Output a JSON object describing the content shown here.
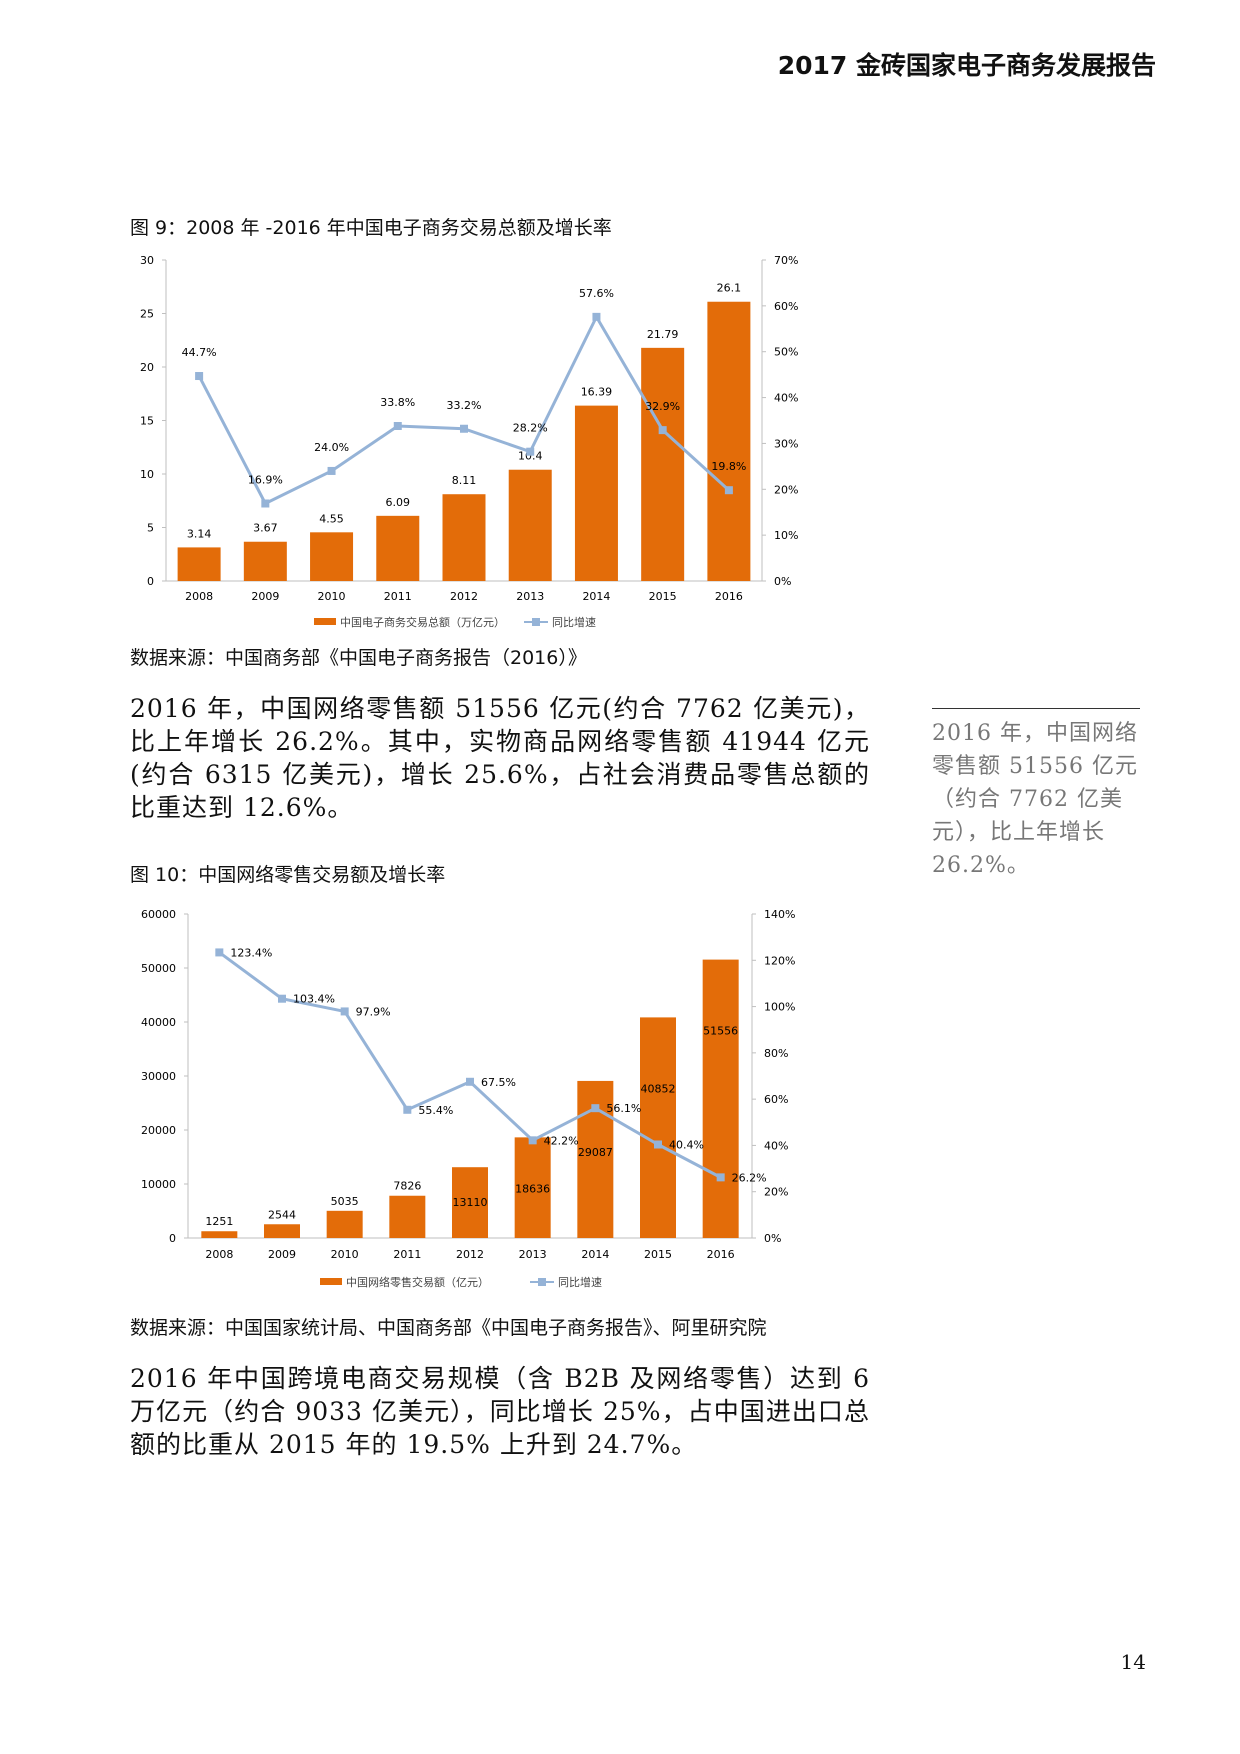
{
  "header": {
    "title": "2017 金砖国家电子商务发展报告"
  },
  "figure9": {
    "caption": "图 9：2008 年 -2016 年中国电子商务交易总额及增长率"
  },
  "figure9_source": "数据来源：中国商务部《中国电子商务报告（2016）》",
  "paragraph1": "2016 年，中国网络零售额 51556 亿元(约合 7762 亿美元)，比上年增长 26.2%。其中，实物商品网络零售额 41944 亿元(约合 6315 亿美元)，增长 25.6%，占社会消费品零售总额的比重达到 12.6%。",
  "sidebar": {
    "quote": "2016 年，中国网络零售额 51556 亿元（约合 7762 亿美元），比上年增长 26.2%。"
  },
  "figure10": {
    "caption": "图 10：中国网络零售交易额及增长率"
  },
  "figure10_source": "数据来源：中国国家统计局、中国商务部《中国电子商务报告》、阿里研究院",
  "paragraph2": "2016 年中国跨境电商交易规模（含 B2B 及网络零售）达到 6 万亿元（约合 9033 亿美元），同比增长 25%，占中国进出口总额的比重从 2015 年的 19.5% 上升到 24.7%。",
  "page_number": "14",
  "colors": {
    "bar": "#E36C09",
    "line": "#95B3D7",
    "axis": "#BFBFBF"
  },
  "chart_data": [
    {
      "type": "bar+line",
      "categories": [
        "2008",
        "2009",
        "2010",
        "2011",
        "2012",
        "2013",
        "2014",
        "2015",
        "2016"
      ],
      "series": [
        {
          "name": "中国电子商务交易总额（万亿元）",
          "kind": "bar",
          "axis": "left",
          "values": [
            3.14,
            3.67,
            4.55,
            6.09,
            8.11,
            10.4,
            16.39,
            21.79,
            26.1
          ],
          "labels": [
            "3.14",
            "3.67",
            "4.55",
            "6.09",
            "8.11",
            "10.4",
            "16.39",
            "21.79",
            "26.1"
          ]
        },
        {
          "name": "同比增速",
          "kind": "line",
          "axis": "right",
          "values": [
            44.7,
            16.9,
            24.0,
            33.8,
            33.2,
            28.2,
            57.6,
            32.9,
            19.8
          ],
          "labels": [
            "44.7%",
            "16.9%",
            "24.0%",
            "33.8%",
            "33.2%",
            "28.2%",
            "57.6%",
            "32.9%",
            "19.8%"
          ]
        }
      ],
      "yleft": {
        "min": 0,
        "max": 30,
        "ticks": [
          "0",
          "5",
          "10",
          "15",
          "20",
          "25",
          "30"
        ]
      },
      "yright": {
        "min": 0,
        "max": 70,
        "ticks": [
          "0%",
          "10%",
          "20%",
          "30%",
          "40%",
          "50%",
          "60%",
          "70%"
        ]
      },
      "legend": "bottom"
    },
    {
      "type": "bar+line",
      "categories": [
        "2008",
        "2009",
        "2010",
        "2011",
        "2012",
        "2013",
        "2014",
        "2015",
        "2016"
      ],
      "series": [
        {
          "name": "中国网络零售交易额（亿元）",
          "kind": "bar",
          "axis": "left",
          "values": [
            1251,
            2544,
            5035,
            7826,
            13110,
            18636,
            29087,
            40852,
            51556
          ],
          "labels": [
            "1251",
            "2544",
            "5035",
            "7826",
            "13110",
            "18636",
            "29087",
            "40852",
            "51556"
          ]
        },
        {
          "name": "同比增速",
          "kind": "line",
          "axis": "right",
          "values": [
            123.4,
            103.4,
            97.9,
            55.4,
            67.5,
            42.2,
            56.1,
            40.4,
            26.2
          ],
          "labels": [
            "123.4%",
            "103.4%",
            "97.9%",
            "55.4%",
            "67.5%",
            "42.2%",
            "56.1%",
            "40.4%",
            "26.2%"
          ]
        }
      ],
      "yleft": {
        "min": 0,
        "max": 60000,
        "ticks": [
          "0",
          "10000",
          "20000",
          "30000",
          "40000",
          "50000",
          "60000"
        ]
      },
      "yright": {
        "min": 0,
        "max": 140,
        "ticks": [
          "0%",
          "20%",
          "40%",
          "60%",
          "80%",
          "100%",
          "120%",
          "140%"
        ]
      },
      "legend": "bottom"
    }
  ]
}
